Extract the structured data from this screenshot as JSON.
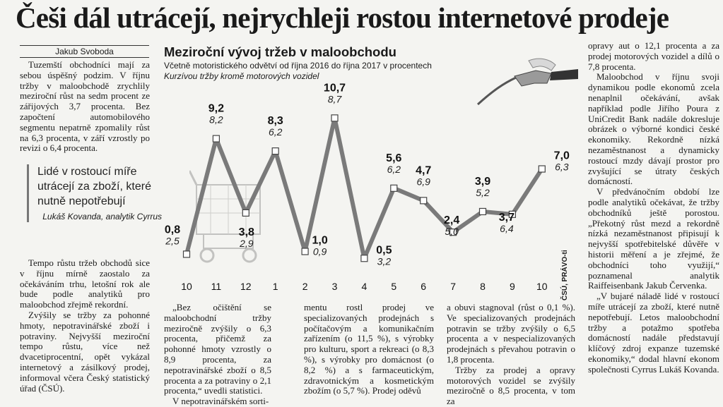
{
  "headline": "Češi dál utrácejí, nejrychleji rostou internetové prodeje",
  "author": "Jakub Svoboda",
  "col1": [
    "Tuzemští obchodníci mají za sebou úspěšný podzim. V říjnu tržby v maloobchodě zrychlily meziroční růst na sedm procent ze zářijových 3,7 procenta. Bez započtení automobilového segmentu nepatrně zpomalily růst na 6,3 procenta, v září vzrostly po revizi o 6,4 procenta."
  ],
  "quote": {
    "text": "Lidé v rostoucí míře utrácejí za zboží, které nutně nepotřebují",
    "author": "Lukáš Kovanda, analytik Cyrrus"
  },
  "col1b": [
    "Tempo růstu tržeb obchodů sice v říjnu mírně zaostalo za očekáváním trhu, letošní rok ale bude podle analytiků pro maloobchod zřejmě rekordní.",
    "Zvýšily se tržby za pohonné hmoty, nepotravinářské zboží i potraviny. Nejvyšší meziroční tempo růstu, více než dvacetiprocentní, opět vykázal internetový a zásilkový prodej, informoval včera Český statistický úřad (ČSÚ)."
  ],
  "col2": [
    "„Bez očištění se maloobchodní tržby meziročně zvýšily o 6,3 procenta, přičemž za pohonné hmoty vzrostly o 8,9 procenta, za nepotravinářské zboží o 8,5 procenta a za potraviny o 2,1 procenta,“ uvedli statistici.",
    "V nepotravinářském sorti-"
  ],
  "col3": [
    "mentu rostl prodej ve specializovaných prodejnách s počítačovým a komunikačním zařízením (o 11,5 %), s výrobky pro kulturu, sport a rekreaci (o 8,3 %), s výrobky pro domácnost (o 8,2 %) a s farmaceutickým, zdravotnickým a kosmetickým zbožím (o 5,7 %). Prodej oděvů"
  ],
  "col4": [
    "a obuvi stagnoval (růst o 0,1 %). Ve specializovaných prodejnách potravin se tržby zvýšily o 6,5 procenta a v nespecializovaných prodejnách s převahou potravin o 1,8 procenta.",
    "Tržby za prodej a opravy motorových vozidel se zvýšily meziročně o 8,5 procenta, v tom za"
  ],
  "col5": [
    "opravy aut o 12,1 procenta a za prodej motorových vozidel a dílů o 7,8 procenta.",
    "Maloobchod v říjnu svoji dynamikou podle ekonomů zcela nenaplnil očekávání, avšak například podle Jiřího Poura z UniCredit Bank nadále dokresluje obrázek o výborné kondici české ekonomiky. Rekordně nízká nezaměstnanost a dynamicky rostoucí mzdy dávají prostor pro zvyšující se útraty českých domácností.",
    "V předvánočním období lze podle analytiků očekávat, že tržby obchodníků ještě porostou. „Překotný růst mezd a rekordně nízká nezaměstnanost připisují k nejvyšší spotřebitelské důvěře v historii měření a je zřejmé, že obchodníci toho využijí,“ poznamenal analytik Raiffeisenbank Jakub Červenka.",
    "„V bujaré náladě lidé v rostoucí míře utrácejí za zboží, které nutně nepotřebují. Letos maloobchodní tržby a potažmo spotřeba domácností nadále představují klíčový zdroj expanze tuzemské ekonomiky,“ dodal hlavní ekonom společnosti Cyrrus Lukáš Kovanda."
  ],
  "chart_title": "Meziroční vývoj tržeb v maloobchodu",
  "chart_subtitle": "Včetně motoristického odvětví od října 2016 do října 2017 v procentech",
  "chart_subtitle2": "Kurzívou tržby kromě motorových vozidel",
  "source": "ČSÚ, PRÁVO-ti",
  "chart_data": {
    "type": "line",
    "categories": [
      "10",
      "11",
      "12",
      "1",
      "2",
      "3",
      "4",
      "5",
      "6",
      "7",
      "8",
      "9",
      "10"
    ],
    "series": [
      {
        "values": [
          0.8,
          9.2,
          3.8,
          8.3,
          1.0,
          10.7,
          0.5,
          5.6,
          4.7,
          2.4,
          3.9,
          3.7,
          7.0
        ]
      },
      {
        "values": [
          2.5,
          8.2,
          2.9,
          6.2,
          0.9,
          8.7,
          3.2,
          6.2,
          6.9,
          5.0,
          5.2,
          6.4,
          6.3
        ]
      }
    ],
    "labels_main": [
      "0,8",
      "9,2",
      "3,8",
      "8,3",
      "1,0",
      "10,7",
      "0,5",
      "5,6",
      "4,7",
      "2,4",
      "3,9",
      "3,7",
      "7,0"
    ],
    "labels_italic": [
      "2,5",
      "8,2",
      "2,9",
      "6,2",
      "0,9",
      "8,7",
      "3,2",
      "6,2",
      "6,9",
      "5,0",
      "5,2",
      "6,4",
      "6,3"
    ],
    "line_color": "#7a7a7a"
  }
}
